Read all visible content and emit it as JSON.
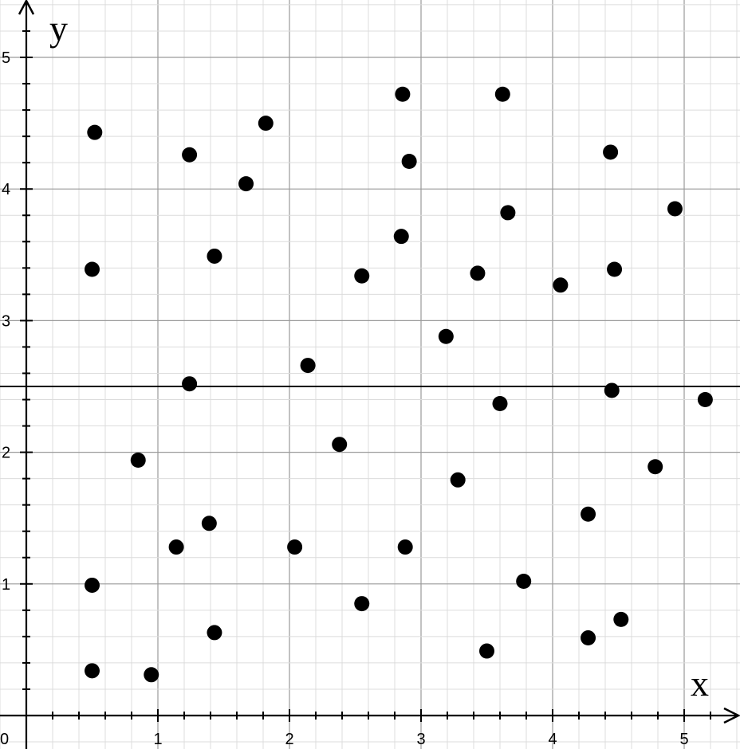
{
  "chart_data": {
    "type": "scatter",
    "xlabel": "x",
    "ylabel": "y",
    "xlim": [
      -0.2,
      5.4
    ],
    "ylim": [
      -0.25,
      5.45
    ],
    "x_ticks": [
      1,
      2,
      3,
      4,
      5
    ],
    "y_ticks": [
      1,
      2,
      3,
      4,
      5
    ],
    "origin_label": "0",
    "grid": true,
    "minor_grid_step": 0.2,
    "reference_line_y": 2.5,
    "point_color": "#000000",
    "points": [
      {
        "x": 0.52,
        "y": 4.43
      },
      {
        "x": 1.24,
        "y": 4.26
      },
      {
        "x": 1.82,
        "y": 4.5
      },
      {
        "x": 1.67,
        "y": 4.04
      },
      {
        "x": 0.5,
        "y": 3.39
      },
      {
        "x": 1.43,
        "y": 3.49
      },
      {
        "x": 2.86,
        "y": 4.72
      },
      {
        "x": 3.62,
        "y": 4.72
      },
      {
        "x": 2.91,
        "y": 4.21
      },
      {
        "x": 4.44,
        "y": 4.28
      },
      {
        "x": 3.66,
        "y": 3.82
      },
      {
        "x": 4.93,
        "y": 3.85
      },
      {
        "x": 2.85,
        "y": 3.64
      },
      {
        "x": 2.55,
        "y": 3.34
      },
      {
        "x": 3.43,
        "y": 3.36
      },
      {
        "x": 4.06,
        "y": 3.27
      },
      {
        "x": 4.47,
        "y": 3.39
      },
      {
        "x": 3.19,
        "y": 2.88
      },
      {
        "x": 2.14,
        "y": 2.66
      },
      {
        "x": 1.24,
        "y": 2.52
      },
      {
        "x": 3.6,
        "y": 2.37
      },
      {
        "x": 4.45,
        "y": 2.47
      },
      {
        "x": 5.16,
        "y": 2.4
      },
      {
        "x": 0.85,
        "y": 1.94
      },
      {
        "x": 2.38,
        "y": 2.06
      },
      {
        "x": 3.28,
        "y": 1.79
      },
      {
        "x": 4.78,
        "y": 1.89
      },
      {
        "x": 4.27,
        "y": 1.53
      },
      {
        "x": 1.39,
        "y": 1.46
      },
      {
        "x": 1.14,
        "y": 1.28
      },
      {
        "x": 2.04,
        "y": 1.28
      },
      {
        "x": 2.88,
        "y": 1.28
      },
      {
        "x": 0.5,
        "y": 0.99
      },
      {
        "x": 3.78,
        "y": 1.02
      },
      {
        "x": 2.55,
        "y": 0.85
      },
      {
        "x": 1.43,
        "y": 0.63
      },
      {
        "x": 4.52,
        "y": 0.73
      },
      {
        "x": 4.27,
        "y": 0.59
      },
      {
        "x": 3.5,
        "y": 0.49
      },
      {
        "x": 0.5,
        "y": 0.34
      },
      {
        "x": 0.95,
        "y": 0.31
      }
    ]
  }
}
